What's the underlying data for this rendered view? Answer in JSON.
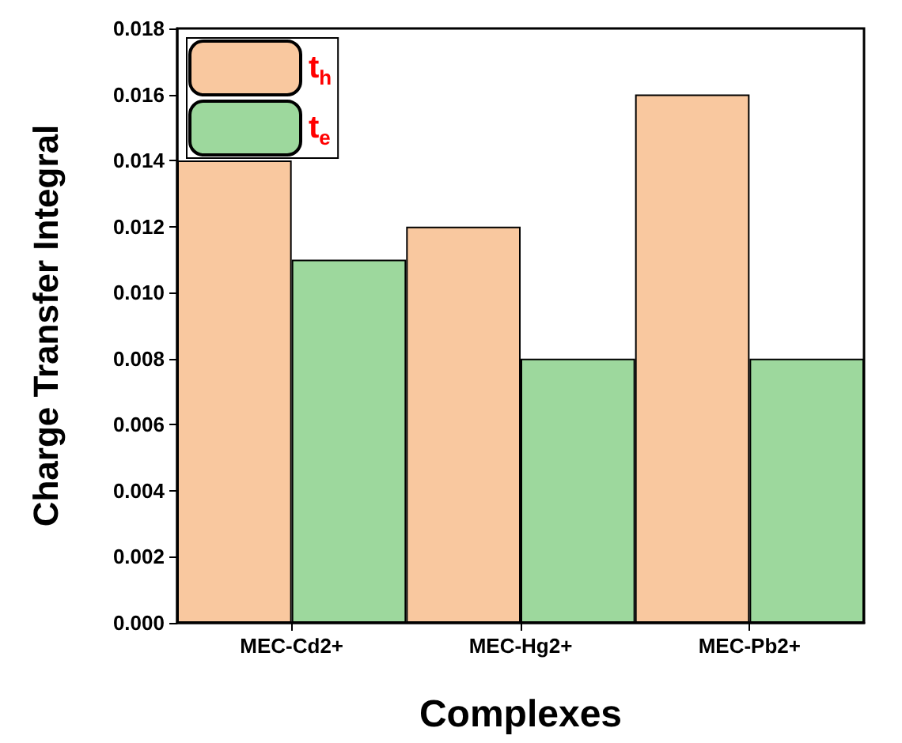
{
  "chart_data": {
    "type": "bar",
    "xlabel": "Complexes",
    "ylabel": "Charge Transfer Integral",
    "categories": [
      "MEC-Cd2+",
      "MEC-Hg2+",
      "MEC-Pb2+"
    ],
    "series": [
      {
        "name": "t$_{h}$",
        "color": "#f9c89f",
        "values": [
          0.014,
          0.012,
          0.016
        ]
      },
      {
        "name": "t$_{e}$",
        "color": "#9dd89d",
        "values": [
          0.011,
          0.008,
          0.008
        ]
      }
    ],
    "ylim": [
      0,
      0.018
    ],
    "yticks": [
      {
        "value": 0,
        "label": "0.000"
      },
      {
        "value": 0.002,
        "label": "0.002"
      },
      {
        "value": 0.004,
        "label": "0.004"
      },
      {
        "value": 0.006,
        "label": "0.006"
      },
      {
        "value": 0.008,
        "label": "0.008"
      },
      {
        "value": 0.01,
        "label": "0.010"
      },
      {
        "value": 0.012,
        "label": "0.012"
      },
      {
        "value": 0.014,
        "label": "0.014"
      },
      {
        "value": 0.016,
        "label": "0.016"
      },
      {
        "value": 0.018,
        "label": "0.018"
      }
    ],
    "grid": false,
    "legend": "top left"
  }
}
